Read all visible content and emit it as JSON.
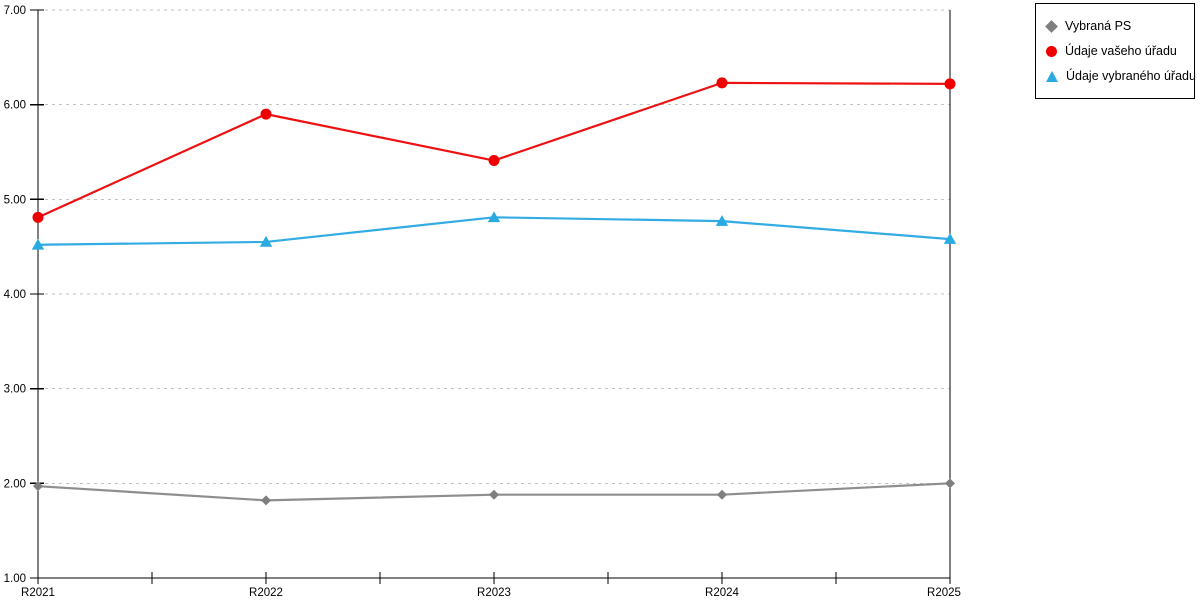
{
  "chart_data": {
    "type": "line",
    "title": "",
    "xlabel": "",
    "ylabel": "",
    "categories": [
      "R2021",
      "R2022",
      "R2023",
      "R2024",
      "R2025"
    ],
    "series": [
      {
        "name": "Vybraná PS",
        "marker": "diamond",
        "color": "#7f7f7f",
        "line_color": "#8e8e8e",
        "values": [
          1.97,
          1.82,
          1.88,
          1.88,
          2.0
        ]
      },
      {
        "name": "Údaje vašeho úřadu",
        "marker": "circle",
        "color": "#ee0000",
        "line_color": "#ee1111",
        "values": [
          4.81,
          5.9,
          5.41,
          6.23,
          6.22
        ]
      },
      {
        "name": "Údaje vybraného úřadu",
        "marker": "triangle",
        "color": "#29abe2",
        "line_color": "#33ace3",
        "values": [
          4.52,
          4.55,
          4.81,
          4.77,
          4.58
        ]
      }
    ],
    "ylim": [
      1.0,
      7.0
    ],
    "ytick_labels": [
      "1.00",
      "2.00",
      "3.00",
      "4.00",
      "5.00",
      "6.00",
      "7.00"
    ],
    "grid": "horizontal-dashed",
    "gridline_color": "#c3c3c3",
    "axis_color": "#000000",
    "legend_position": "top-right"
  }
}
